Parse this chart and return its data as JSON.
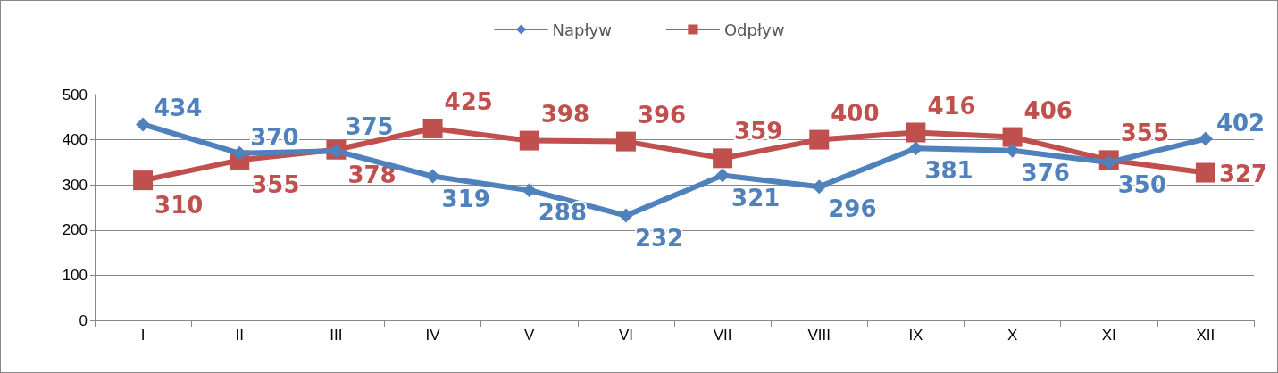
{
  "chart_data": {
    "type": "line",
    "categories": [
      "I",
      "II",
      "III",
      "IV",
      "V",
      "VI",
      "VII",
      "VIII",
      "IX",
      "X",
      "XI",
      "XII"
    ],
    "series": [
      {
        "name": "Napływ",
        "color": "#4f81bd",
        "marker": "diamond",
        "values": [
          434,
          370,
          375,
          319,
          288,
          232,
          321,
          296,
          381,
          376,
          350,
          402
        ]
      },
      {
        "name": "Odpływ",
        "color": "#c0504d",
        "marker": "square",
        "values": [
          310,
          355,
          378,
          425,
          398,
          396,
          359,
          400,
          416,
          406,
          355,
          327
        ]
      }
    ],
    "ylim": [
      0,
      500
    ],
    "yticks": [
      0,
      100,
      200,
      300,
      400,
      500
    ],
    "grid": "y",
    "legend": "top",
    "data_labels": true
  }
}
